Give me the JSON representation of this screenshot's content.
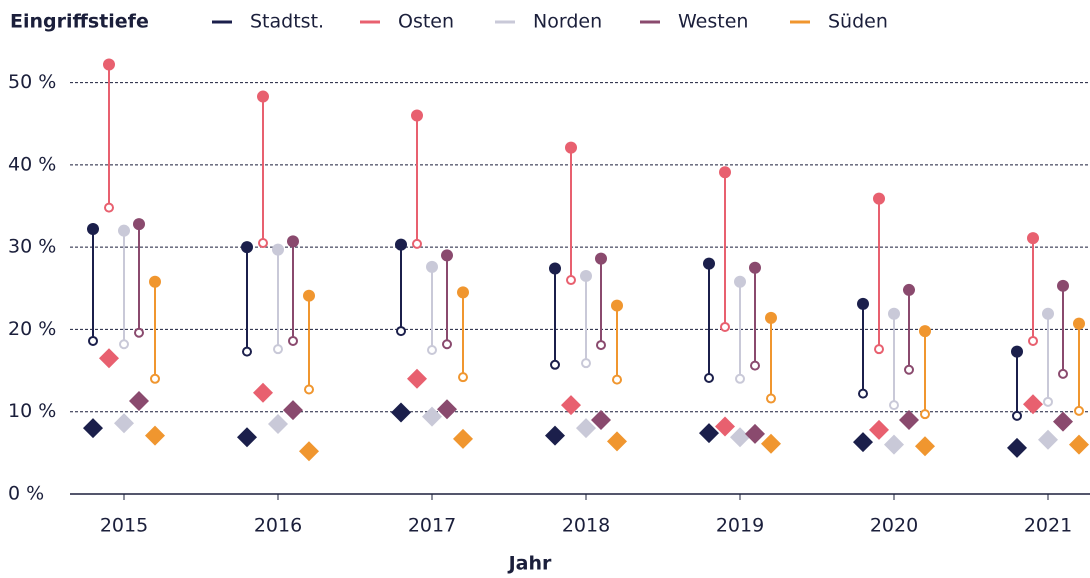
{
  "chart_data": {
    "type": "dumbbell",
    "title": "Eingriffstiefe",
    "x_label": "Jahr",
    "categories": [
      "2015",
      "2016",
      "2017",
      "2018",
      "2019",
      "2020",
      "2021"
    ],
    "ylim": [
      0,
      52.5
    ],
    "yticks": [
      {
        "value": 0,
        "label": "0 %"
      },
      {
        "value": 10,
        "label": "10 %"
      },
      {
        "value": 20,
        "label": "20 %"
      },
      {
        "value": 30,
        "label": "30 %"
      },
      {
        "value": 40,
        "label": "40 %"
      },
      {
        "value": 50,
        "label": "50 %"
      }
    ],
    "grid": true,
    "series": [
      {
        "name": "Stadtst.",
        "color": "#1b1f4b",
        "values": [
          32.2,
          30.0,
          30.3,
          27.4,
          28.0,
          23.1,
          17.3
        ],
        "low": [
          18.6,
          17.3,
          19.8,
          15.7,
          14.1,
          12.2,
          9.5
        ],
        "diamond": [
          8.0,
          6.9,
          9.9,
          7.1,
          7.4,
          6.3,
          5.6
        ]
      },
      {
        "name": "Osten",
        "color": "#e8606f",
        "values": [
          52.2,
          48.3,
          46.0,
          42.1,
          39.1,
          35.9,
          31.1
        ],
        "low": [
          34.8,
          30.5,
          30.4,
          26.0,
          20.3,
          17.6,
          18.6
        ],
        "diamond": [
          16.5,
          12.3,
          14.0,
          10.8,
          8.2,
          7.8,
          10.9
        ]
      },
      {
        "name": "Norden",
        "color": "#c9c9d8",
        "values": [
          32.0,
          29.7,
          27.6,
          26.5,
          25.8,
          21.9,
          21.9
        ],
        "low": [
          18.2,
          17.6,
          17.5,
          15.9,
          14.0,
          10.8,
          11.2
        ],
        "diamond": [
          8.6,
          8.5,
          9.4,
          8.0,
          6.9,
          6.0,
          6.6
        ]
      },
      {
        "name": "Westen",
        "color": "#8a4a6e",
        "values": [
          32.8,
          30.7,
          29.0,
          28.6,
          27.5,
          24.8,
          25.3
        ],
        "low": [
          19.6,
          18.6,
          18.2,
          18.1,
          15.6,
          15.1,
          14.6
        ],
        "diamond": [
          11.3,
          10.2,
          10.3,
          9.0,
          7.3,
          9.0,
          8.8
        ]
      },
      {
        "name": "Süden",
        "color": "#f0962f",
        "values": [
          25.8,
          24.1,
          24.5,
          22.9,
          21.4,
          19.8,
          20.7
        ],
        "low": [
          14.0,
          12.7,
          14.2,
          13.9,
          11.6,
          9.7,
          10.1
        ],
        "diamond": [
          7.1,
          5.2,
          6.7,
          6.4,
          6.1,
          5.8,
          6.0
        ]
      }
    ]
  }
}
